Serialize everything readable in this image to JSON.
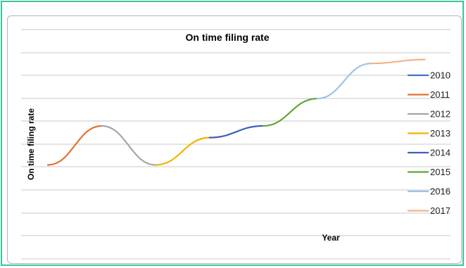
{
  "chart_data": {
    "type": "line",
    "title": "On time filing rate",
    "xlabel": "Year",
    "ylabel": "On time filing rate",
    "grid": true,
    "legend_position": "right",
    "show_axis_ticks": false,
    "series": [
      {
        "name": "2010",
        "color": "#4472c4",
        "points": []
      },
      {
        "name": "2011",
        "color": "#e07030",
        "points": [
          [
            0,
            1.0
          ],
          [
            1,
            2.0
          ]
        ]
      },
      {
        "name": "2012",
        "color": "#a5a5a5",
        "points": [
          [
            1,
            2.0
          ],
          [
            2,
            1.0
          ]
        ]
      },
      {
        "name": "2013",
        "color": "#f0b400",
        "points": [
          [
            2,
            1.0
          ],
          [
            3,
            1.7
          ]
        ]
      },
      {
        "name": "2014",
        "color": "#4060b8",
        "points": [
          [
            3,
            1.7
          ],
          [
            4,
            2.0
          ]
        ]
      },
      {
        "name": "2015",
        "color": "#5ea834",
        "points": [
          [
            4,
            2.0
          ],
          [
            5,
            2.7
          ]
        ]
      },
      {
        "name": "2016",
        "color": "#9dc3e6",
        "points": [
          [
            5,
            2.7
          ],
          [
            6,
            3.6
          ]
        ]
      },
      {
        "name": "2017",
        "color": "#f4b183",
        "points": [
          [
            6,
            3.6
          ],
          [
            7,
            3.7
          ]
        ]
      }
    ]
  }
}
